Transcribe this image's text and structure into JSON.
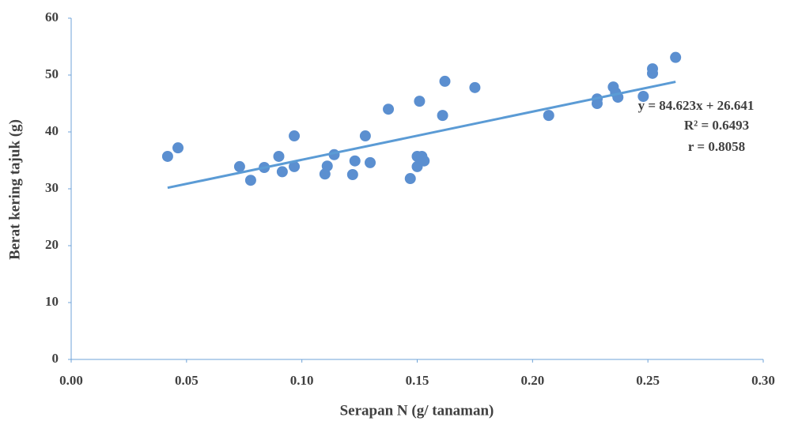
{
  "chart_data": {
    "type": "scatter",
    "x_label": "Serapan N (g/ tanaman)",
    "y_label": "Berat kering tajuk (g)",
    "x": [
      0.0418,
      0.0463,
      0.073,
      0.0778,
      0.0837,
      0.09,
      0.0915,
      0.0967,
      0.0967,
      0.11,
      0.111,
      0.114,
      0.122,
      0.123,
      0.1275,
      0.1296,
      0.1375,
      0.147,
      0.15,
      0.15,
      0.151,
      0.152,
      0.153,
      0.161,
      0.162,
      0.175,
      0.207,
      0.228,
      0.228,
      0.235,
      0.236,
      0.237,
      0.248,
      0.252,
      0.252,
      0.262
    ],
    "values": [
      35.7,
      37.2,
      33.9,
      31.5,
      33.75,
      35.7,
      33.0,
      39.3,
      33.9,
      32.6,
      34.0,
      36.0,
      32.5,
      34.9,
      39.3,
      34.6,
      44.0,
      31.8,
      35.7,
      33.9,
      45.4,
      35.7,
      34.9,
      42.9,
      48.9,
      47.8,
      42.9,
      45.8,
      45.0,
      47.9,
      46.9,
      46.1,
      46.25,
      50.3,
      51.1,
      53.1
    ],
    "color": "#5b8fd0",
    "trendline": {
      "x": [
        0.0418,
        0.262
      ],
      "values": [
        30.18,
        48.81
      ],
      "color": "#5b9bd5"
    },
    "annotations": [
      "y = 84.623x + 26.641",
      "R² = 0.6493",
      "r = 0.8058"
    ],
    "xlim": [
      0,
      0.3
    ],
    "ylim": [
      0,
      60
    ],
    "xticks": [
      {
        "value": 0,
        "label": "0.00"
      },
      {
        "value": 0.05,
        "label": "0.05"
      },
      {
        "value": 0.1,
        "label": "0.10"
      },
      {
        "value": 0.15,
        "label": "0.15"
      },
      {
        "value": 0.2,
        "label": "0.20"
      },
      {
        "value": 0.25,
        "label": "0.25"
      },
      {
        "value": 0.3,
        "label": "0.30"
      }
    ],
    "yticks": [
      0,
      10,
      20,
      30,
      40,
      50,
      60
    ],
    "grid": false
  }
}
